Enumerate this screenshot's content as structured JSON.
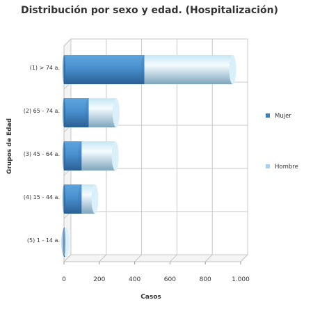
{
  "chart_data": {
    "type": "bar",
    "orientation": "horizontal",
    "stacked": true,
    "three_d": true,
    "title": "Distribución por sexo y edad. (Hospitalización)",
    "xlabel": "Casos",
    "ylabel": "Grupos de Edad",
    "xlim": [
      0,
      1000
    ],
    "x_ticks": [
      0,
      200,
      400,
      600,
      800,
      1000
    ],
    "x_tick_labels": [
      "0",
      "200",
      "400",
      "600",
      "800",
      "1.000"
    ],
    "grid": true,
    "legend_position": "right",
    "categories": [
      "(1) > 74 a.",
      "(2) 65 - 74 a.",
      "(3) 45 - 64 a.",
      "(4) 15 - 44 a.",
      "(5) 1 - 14 a."
    ],
    "series": [
      {
        "name": "Mujer",
        "values": [
          455,
          140,
          100,
          100,
          4
        ],
        "color": "#3d7fbf"
      },
      {
        "name": "Hombre",
        "values": [
          500,
          155,
          190,
          75,
          6
        ],
        "color": "#a3d4ef"
      }
    ]
  }
}
